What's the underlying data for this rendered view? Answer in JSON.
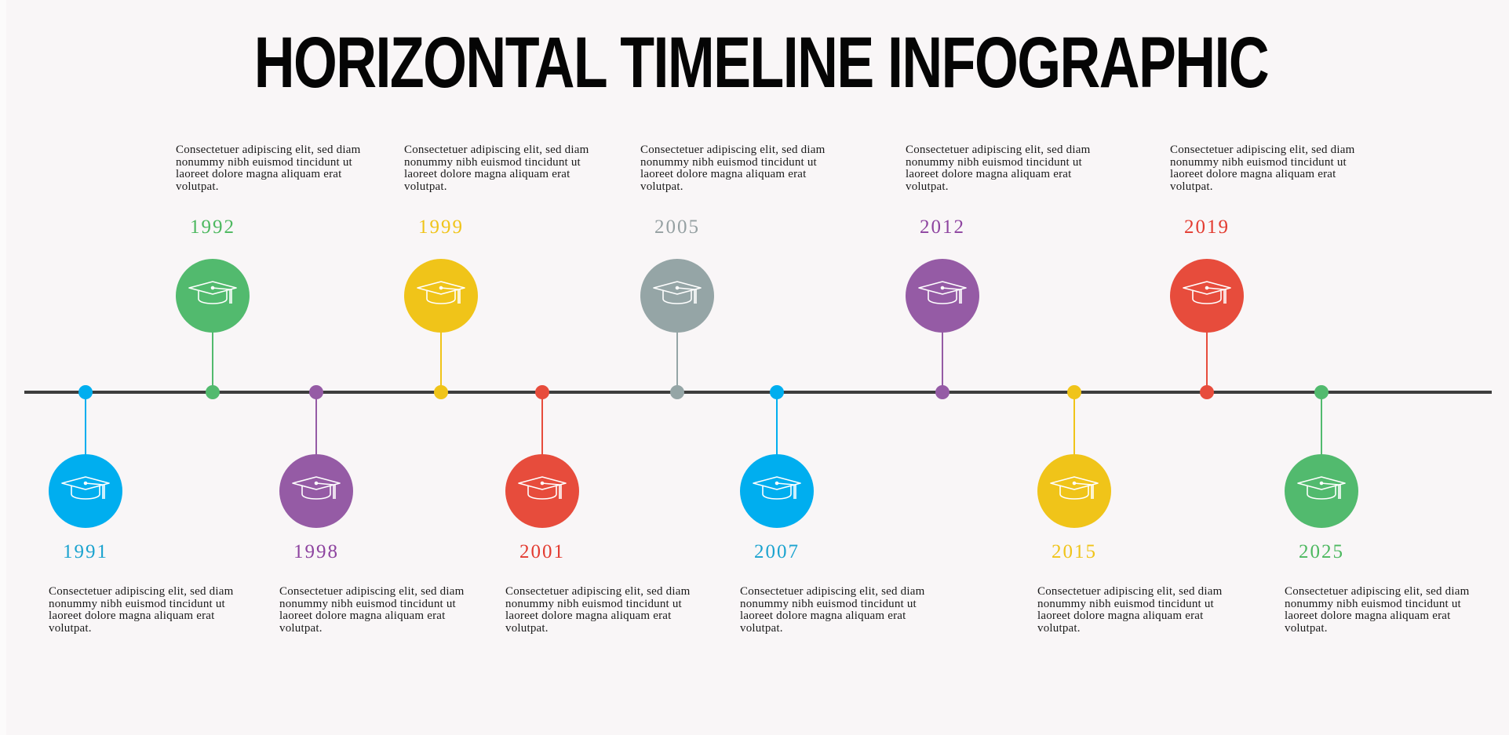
{
  "title": "HORIZONTAL TIMELINE INFOGRAPHIC",
  "icon": "graduation-cap-icon",
  "events": [
    {
      "year": "1991",
      "color": "#00aeef",
      "label_color": "#1ba3cf",
      "side": "below",
      "text": "Consectetuer adipiscing elit, sed diam nonummy nibh euismod tincidunt ut laoreet dolore magna aliquam erat volutpat."
    },
    {
      "year": "1992",
      "color": "#52ba6e",
      "label_color": "#4cb85f",
      "side": "above",
      "text": "Consectetuer adipiscing elit, sed diam nonummy nibh euismod tincidunt ut laoreet dolore magna aliquam erat volutpat."
    },
    {
      "year": "1998",
      "color": "#955ba5",
      "label_color": "#8e44a0",
      "side": "below",
      "text": "Consectetuer adipiscing elit, sed diam nonummy nibh euismod tincidunt ut laoreet dolore magna aliquam erat volutpat."
    },
    {
      "year": "1999",
      "color": "#f0c419",
      "label_color": "#f0c419",
      "side": "above",
      "text": "Consectetuer adipiscing elit, sed diam nonummy nibh euismod tincidunt ut laoreet dolore magna aliquam erat volutpat."
    },
    {
      "year": "2001",
      "color": "#e74c3c",
      "label_color": "#e33b30",
      "side": "below",
      "text": "Consectetuer adipiscing elit, sed diam nonummy nibh euismod tincidunt ut laoreet dolore magna aliquam erat volutpat."
    },
    {
      "year": "2005",
      "color": "#95a5a6",
      "label_color": "#95a0a2",
      "side": "above",
      "text": "Consectetuer adipiscing elit, sed diam nonummy nibh euismod tincidunt ut laoreet dolore magna aliquam erat volutpat."
    },
    {
      "year": "2007",
      "color": "#00aeef",
      "label_color": "#1ba3cf",
      "side": "below",
      "text": "Consectetuer adipiscing elit, sed diam nonummy nibh euismod tincidunt ut laoreet dolore magna aliquam erat volutpat."
    },
    {
      "year": "2012",
      "color": "#955ba5",
      "label_color": "#8e44a0",
      "side": "above",
      "text": "Consectetuer adipiscing elit, sed diam nonummy nibh euismod tincidunt ut laoreet dolore magna aliquam erat volutpat."
    },
    {
      "year": "2015",
      "color": "#f0c419",
      "label_color": "#f0c419",
      "side": "below",
      "text": "Consectetuer adipiscing elit, sed diam nonummy nibh euismod tincidunt ut laoreet dolore magna aliquam erat volutpat."
    },
    {
      "year": "2019",
      "color": "#e74c3c",
      "label_color": "#e33b30",
      "side": "above",
      "text": "Consectetuer adipiscing elit, sed diam nonummy nibh euismod tincidunt ut laoreet dolore magna aliquam erat volutpat."
    },
    {
      "year": "2025",
      "color": "#52ba6e",
      "label_color": "#4cb85f",
      "side": "below",
      "text": "Consectetuer adipiscing elit, sed diam nonummy nibh euismod tincidunt ut laoreet dolore magna aliquam erat volutpat."
    }
  ]
}
